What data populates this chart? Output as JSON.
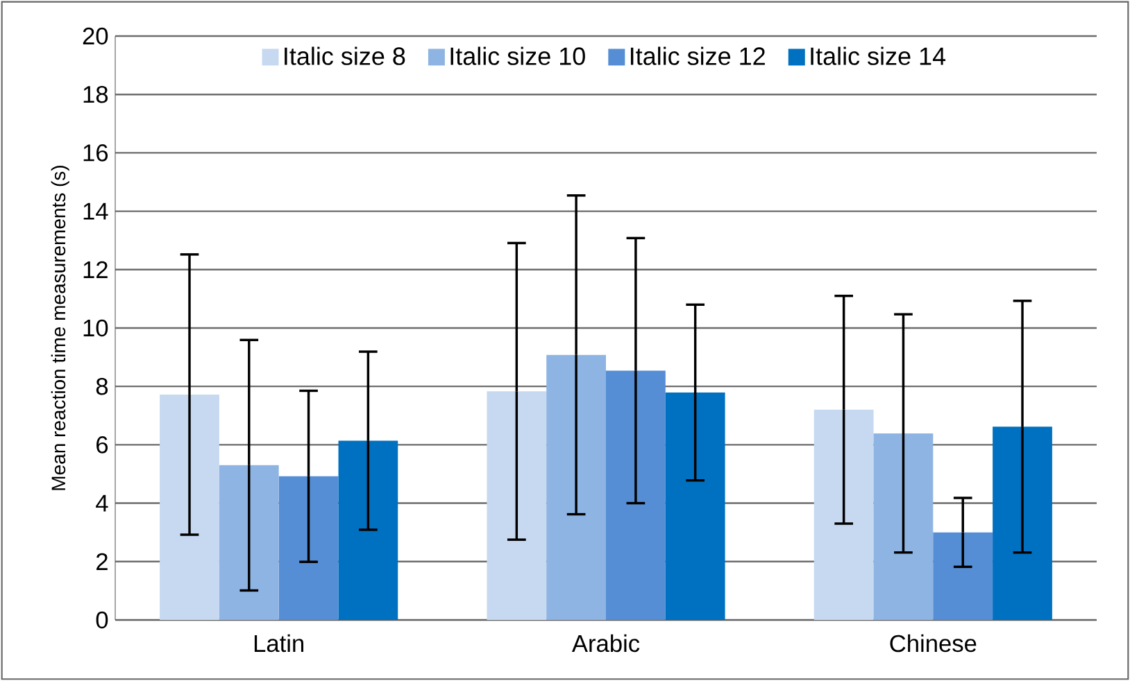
{
  "chart_data": {
    "type": "bar",
    "ylabel": "Mean reaction time measurements (s)",
    "categories": [
      "Latin",
      "Arabic",
      "Chinese"
    ],
    "series": [
      {
        "name": "Italic size 8",
        "color": "#c6d9f1",
        "values": [
          7.72,
          7.83,
          7.2
        ],
        "errors": [
          4.8,
          5.08,
          3.9
        ]
      },
      {
        "name": "Italic size 10",
        "color": "#8eb4e3",
        "values": [
          5.3,
          9.08,
          6.39
        ],
        "errors": [
          4.29,
          5.46,
          4.08
        ]
      },
      {
        "name": "Italic size 12",
        "color": "#558ed5",
        "values": [
          4.92,
          8.54,
          3.0
        ],
        "errors": [
          2.93,
          4.54,
          1.18
        ]
      },
      {
        "name": "Italic size  14",
        "color": "#0070c0",
        "values": [
          6.14,
          7.79,
          6.62
        ],
        "errors": [
          3.05,
          3.01,
          4.31
        ]
      }
    ],
    "ylim": [
      0,
      20
    ],
    "yticks": [
      0,
      2,
      4,
      6,
      8,
      10,
      12,
      14,
      16,
      18,
      20
    ],
    "grid": "y",
    "legend": "top"
  }
}
